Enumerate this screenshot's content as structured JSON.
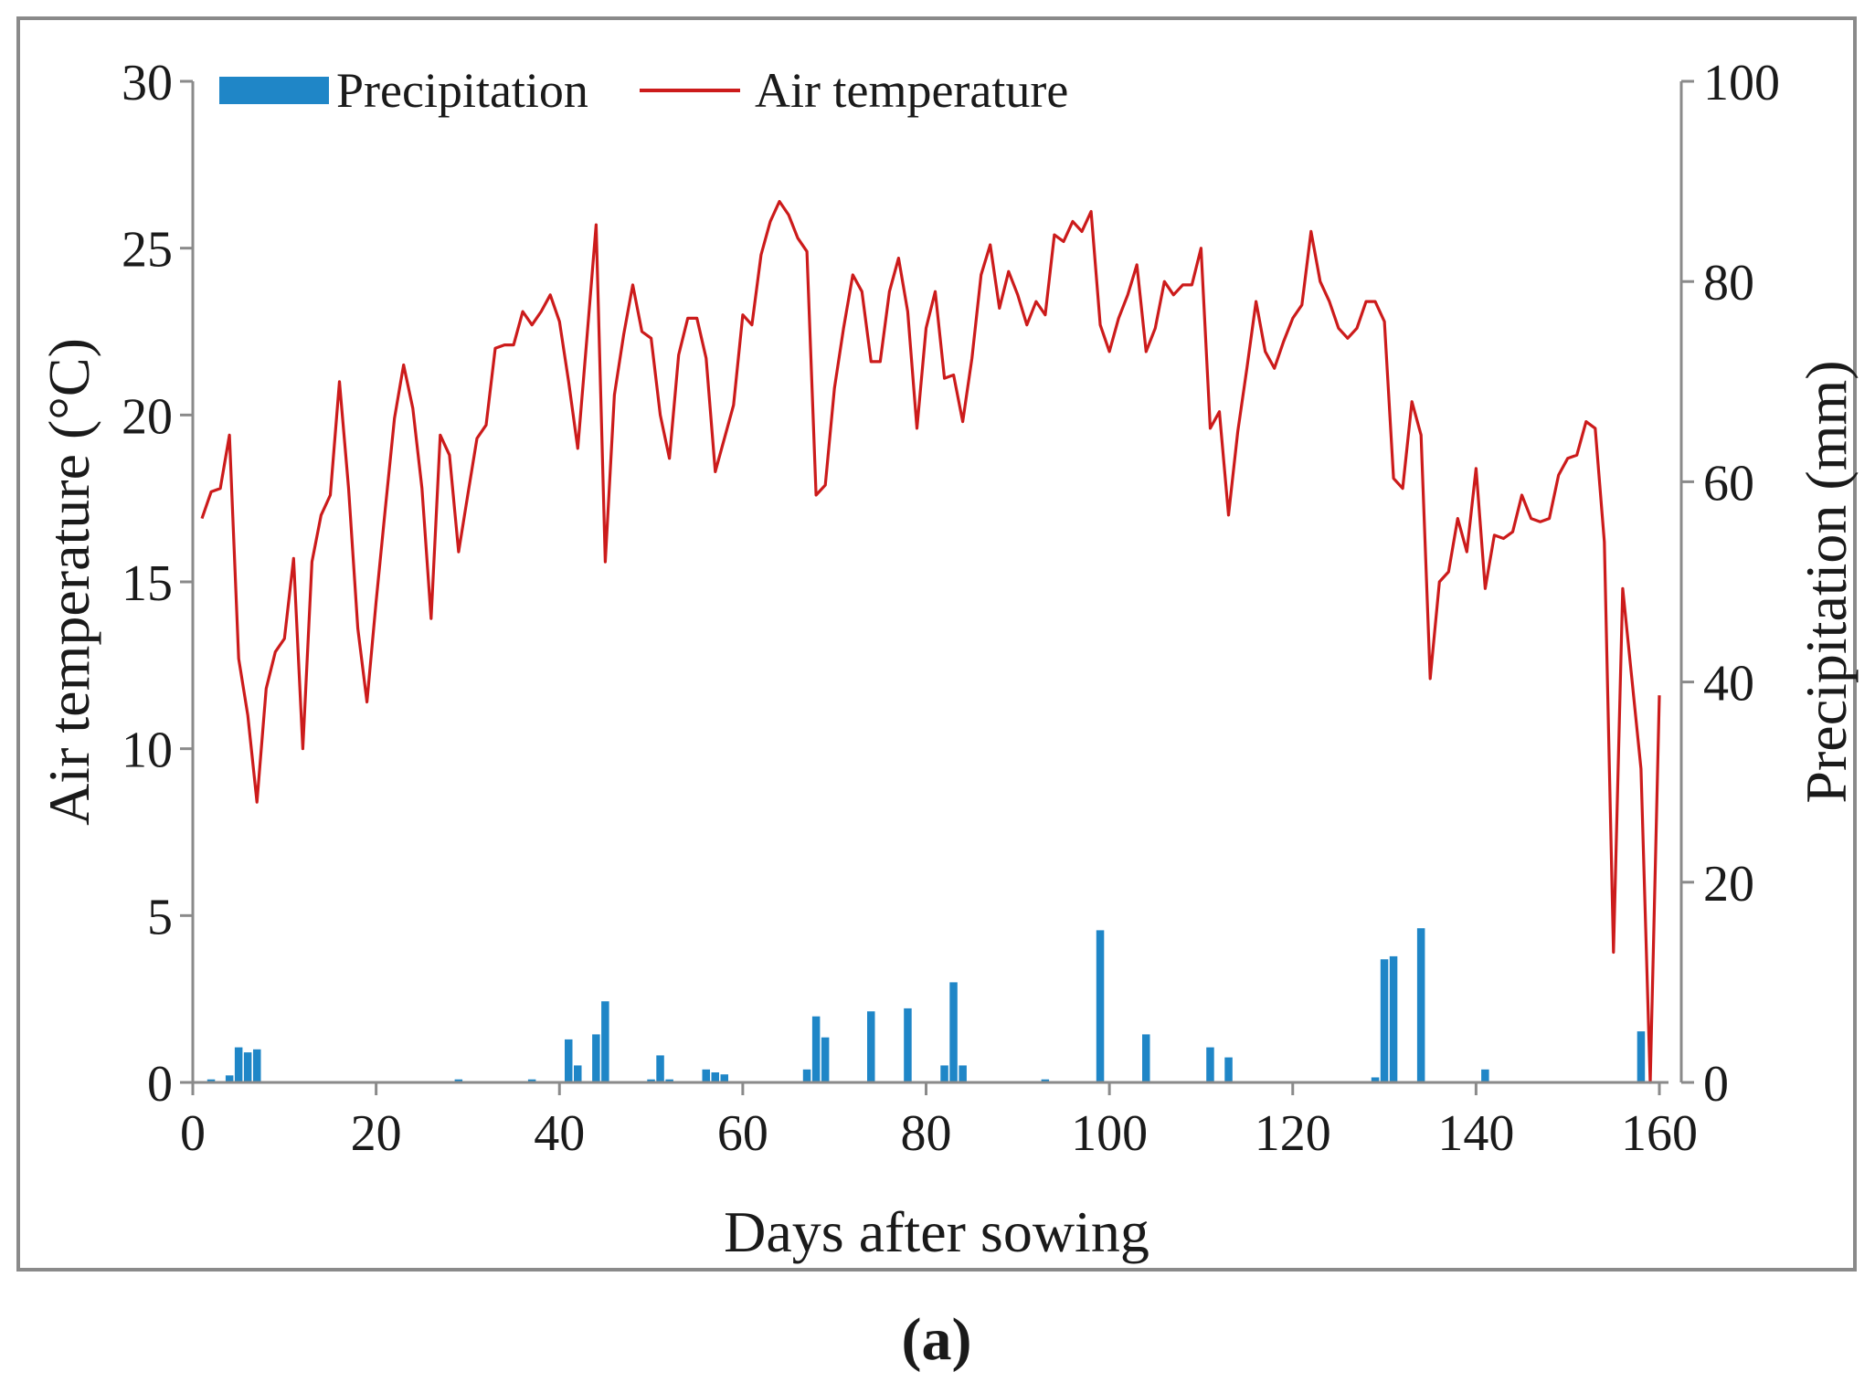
{
  "chart_data": {
    "type": "bar+line",
    "xlabel": "Days after sowing",
    "ylabel_left": "Air temperature (°C)",
    "ylabel_right": "Precipitation (mm)",
    "panel_label": "(a)",
    "xlim": [
      0,
      160
    ],
    "ylim_left": [
      0,
      30
    ],
    "ylim_right": [
      0,
      100
    ],
    "x_ticks": [
      0,
      20,
      40,
      60,
      80,
      100,
      120,
      140,
      160
    ],
    "y_left_ticks": [
      0,
      5,
      10,
      15,
      20,
      25,
      30
    ],
    "y_right_ticks": [
      0,
      20,
      40,
      60,
      80,
      100
    ],
    "legend_position": "top-left",
    "series": [
      {
        "name": "Precipitation",
        "type": "bar",
        "axis": "right",
        "color": "#1f86c7",
        "x": [
          2,
          4,
          5,
          6,
          7,
          29,
          37,
          41,
          42,
          44,
          45,
          50,
          51,
          52,
          56,
          57,
          58,
          67,
          68,
          69,
          74,
          78,
          82,
          83,
          84,
          93,
          99,
          104,
          111,
          113,
          129,
          130,
          131,
          134,
          141,
          158
        ],
        "values": [
          0.3,
          0.7,
          3.5,
          3.0,
          3.3,
          0.3,
          0.3,
          4.3,
          1.7,
          4.8,
          8.1,
          0.3,
          2.7,
          0.3,
          1.3,
          1.0,
          0.8,
          1.3,
          6.6,
          4.5,
          7.1,
          7.4,
          1.7,
          10.0,
          1.7,
          0.3,
          15.2,
          4.8,
          3.5,
          2.5,
          0.5,
          12.3,
          12.6,
          15.4,
          1.3,
          5.1
        ]
      },
      {
        "name": "Air temperature",
        "type": "line",
        "axis": "left",
        "color": "#cc1b1b",
        "x": [
          1,
          2,
          3,
          4,
          5,
          6,
          7,
          8,
          9,
          10,
          11,
          12,
          13,
          14,
          15,
          16,
          17,
          18,
          19,
          20,
          21,
          22,
          23,
          24,
          25,
          26,
          27,
          28,
          29,
          30,
          31,
          32,
          33,
          34,
          35,
          36,
          37,
          38,
          39,
          40,
          41,
          42,
          43,
          44,
          45,
          46,
          47,
          48,
          49,
          50,
          51,
          52,
          53,
          54,
          55,
          56,
          57,
          58,
          59,
          60,
          61,
          62,
          63,
          64,
          65,
          66,
          67,
          68,
          69,
          70,
          71,
          72,
          73,
          74,
          75,
          76,
          77,
          78,
          79,
          80,
          81,
          82,
          83,
          84,
          85,
          86,
          87,
          88,
          89,
          90,
          91,
          92,
          93,
          94,
          95,
          96,
          97,
          98,
          99,
          100,
          101,
          102,
          103,
          104,
          105,
          106,
          107,
          108,
          109,
          110,
          111,
          112,
          113,
          114,
          115,
          116,
          117,
          118,
          119,
          120,
          121,
          122,
          123,
          124,
          125,
          126,
          127,
          128,
          129,
          130,
          131,
          132,
          133,
          134,
          135,
          136,
          137,
          138,
          139,
          140,
          141,
          142,
          143,
          144,
          145,
          146,
          147,
          148,
          149,
          150,
          151,
          152,
          153,
          154,
          155,
          156,
          157,
          158,
          159,
          160
        ],
        "values": [
          16.9,
          17.7,
          17.8,
          19.4,
          12.7,
          11.0,
          8.4,
          11.8,
          12.9,
          13.3,
          15.7,
          10.0,
          15.6,
          17.0,
          17.6,
          21.0,
          17.8,
          13.6,
          11.4,
          14.4,
          17.2,
          19.9,
          21.5,
          20.2,
          17.8,
          13.9,
          19.4,
          18.8,
          15.9,
          17.6,
          19.3,
          19.7,
          22.0,
          22.1,
          22.1,
          23.1,
          22.7,
          23.1,
          23.6,
          22.8,
          21.0,
          19.0,
          22.3,
          25.7,
          15.6,
          20.6,
          22.4,
          23.9,
          22.5,
          22.3,
          20.0,
          18.7,
          21.8,
          22.9,
          22.9,
          21.7,
          18.3,
          19.3,
          20.3,
          23.0,
          22.7,
          24.8,
          25.8,
          26.4,
          26.0,
          25.3,
          24.9,
          17.6,
          17.9,
          20.8,
          22.6,
          24.2,
          23.7,
          21.6,
          21.6,
          23.7,
          24.7,
          23.1,
          19.6,
          22.6,
          23.7,
          21.1,
          21.2,
          19.8,
          21.7,
          24.2,
          25.1,
          23.2,
          24.3,
          23.6,
          22.7,
          23.4,
          23.0,
          25.4,
          25.2,
          25.8,
          25.5,
          26.1,
          22.7,
          21.9,
          22.9,
          23.6,
          24.5,
          21.9,
          22.6,
          24.0,
          23.6,
          23.9,
          23.9,
          25.0,
          19.6,
          20.1,
          17.0,
          19.5,
          21.4,
          23.4,
          21.9,
          21.4,
          22.2,
          22.9,
          23.3,
          25.5,
          24.0,
          23.4,
          22.6,
          22.3,
          22.6,
          23.4,
          23.4,
          22.8,
          18.1,
          17.8,
          20.4,
          19.4,
          12.1,
          15.0,
          15.3,
          16.9,
          15.9,
          18.4,
          14.8,
          16.4,
          16.3,
          16.5,
          17.6,
          16.9,
          16.8,
          16.9,
          18.2,
          18.7,
          18.8,
          19.8,
          19.6,
          16.2,
          3.9,
          14.8,
          12.1,
          9.4,
          0.0,
          11.6
        ]
      }
    ]
  }
}
